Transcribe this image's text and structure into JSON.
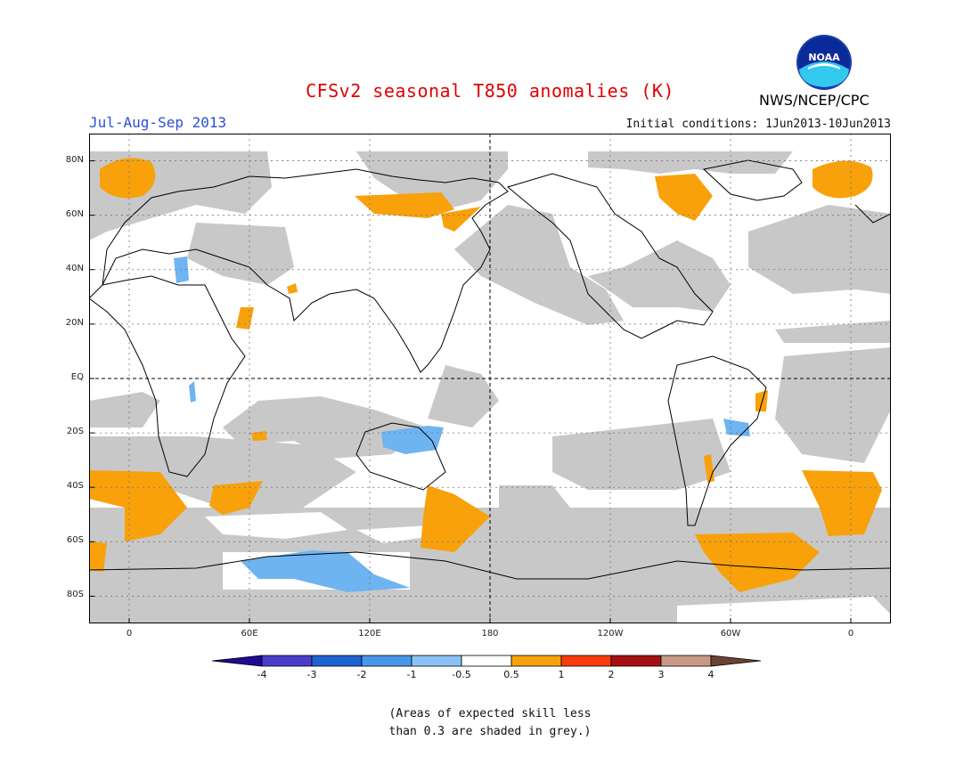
{
  "header": {
    "title": "CFSv2 seasonal T850 anomalies (K)",
    "season": "Jul-Aug-Sep 2013",
    "initial_conditions": "Initial conditions: 1Jun2013-10Jun2013",
    "agency": "NWS/NCEP/CPC",
    "logo_text": "NOAA"
  },
  "map": {
    "projection": "cylindrical equidistant",
    "lon_range": [
      -20,
      380
    ],
    "lat_range": [
      -90,
      90
    ],
    "lat_ticks": [
      {
        "lat": 80,
        "label": "80N"
      },
      {
        "lat": 60,
        "label": "60N"
      },
      {
        "lat": 40,
        "label": "40N"
      },
      {
        "lat": 20,
        "label": "20N"
      },
      {
        "lat": 0,
        "label": "EQ"
      },
      {
        "lat": -20,
        "label": "20S"
      },
      {
        "lat": -40,
        "label": "40S"
      },
      {
        "lat": -60,
        "label": "60S"
      },
      {
        "lat": -80,
        "label": "80S"
      }
    ],
    "lon_ticks": [
      {
        "lon": 0,
        "label": "0"
      },
      {
        "lon": 60,
        "label": "60E"
      },
      {
        "lon": 120,
        "label": "120E"
      },
      {
        "lon": 180,
        "label": "180"
      },
      {
        "lon": 240,
        "label": "120W"
      },
      {
        "lon": 300,
        "label": "60W"
      },
      {
        "lon": 360,
        "label": "0"
      }
    ],
    "colors": {
      "grey_low_skill": "#c8c8c8",
      "warm_0_5_to_1": "#f8a10b",
      "cool_-1_to_-0_5": "#6eb4f0",
      "frame": "#000000"
    }
  },
  "colorbar": {
    "labels": [
      "-4",
      "-3",
      "-2",
      "-1",
      "-0.5",
      "0.5",
      "1",
      "2",
      "3",
      "4"
    ],
    "colors": [
      "#1f0a96",
      "#4a3dc9",
      "#1e63d2",
      "#4896ea",
      "#8cc1f5",
      "#ffffff",
      "#f8a10b",
      "#f83c0e",
      "#a50f12",
      "#c79986",
      "#6b4232"
    ]
  },
  "footnote": {
    "line1": "(Areas of expected skill less",
    "line2": "than 0.3 are shaded in grey.)"
  }
}
